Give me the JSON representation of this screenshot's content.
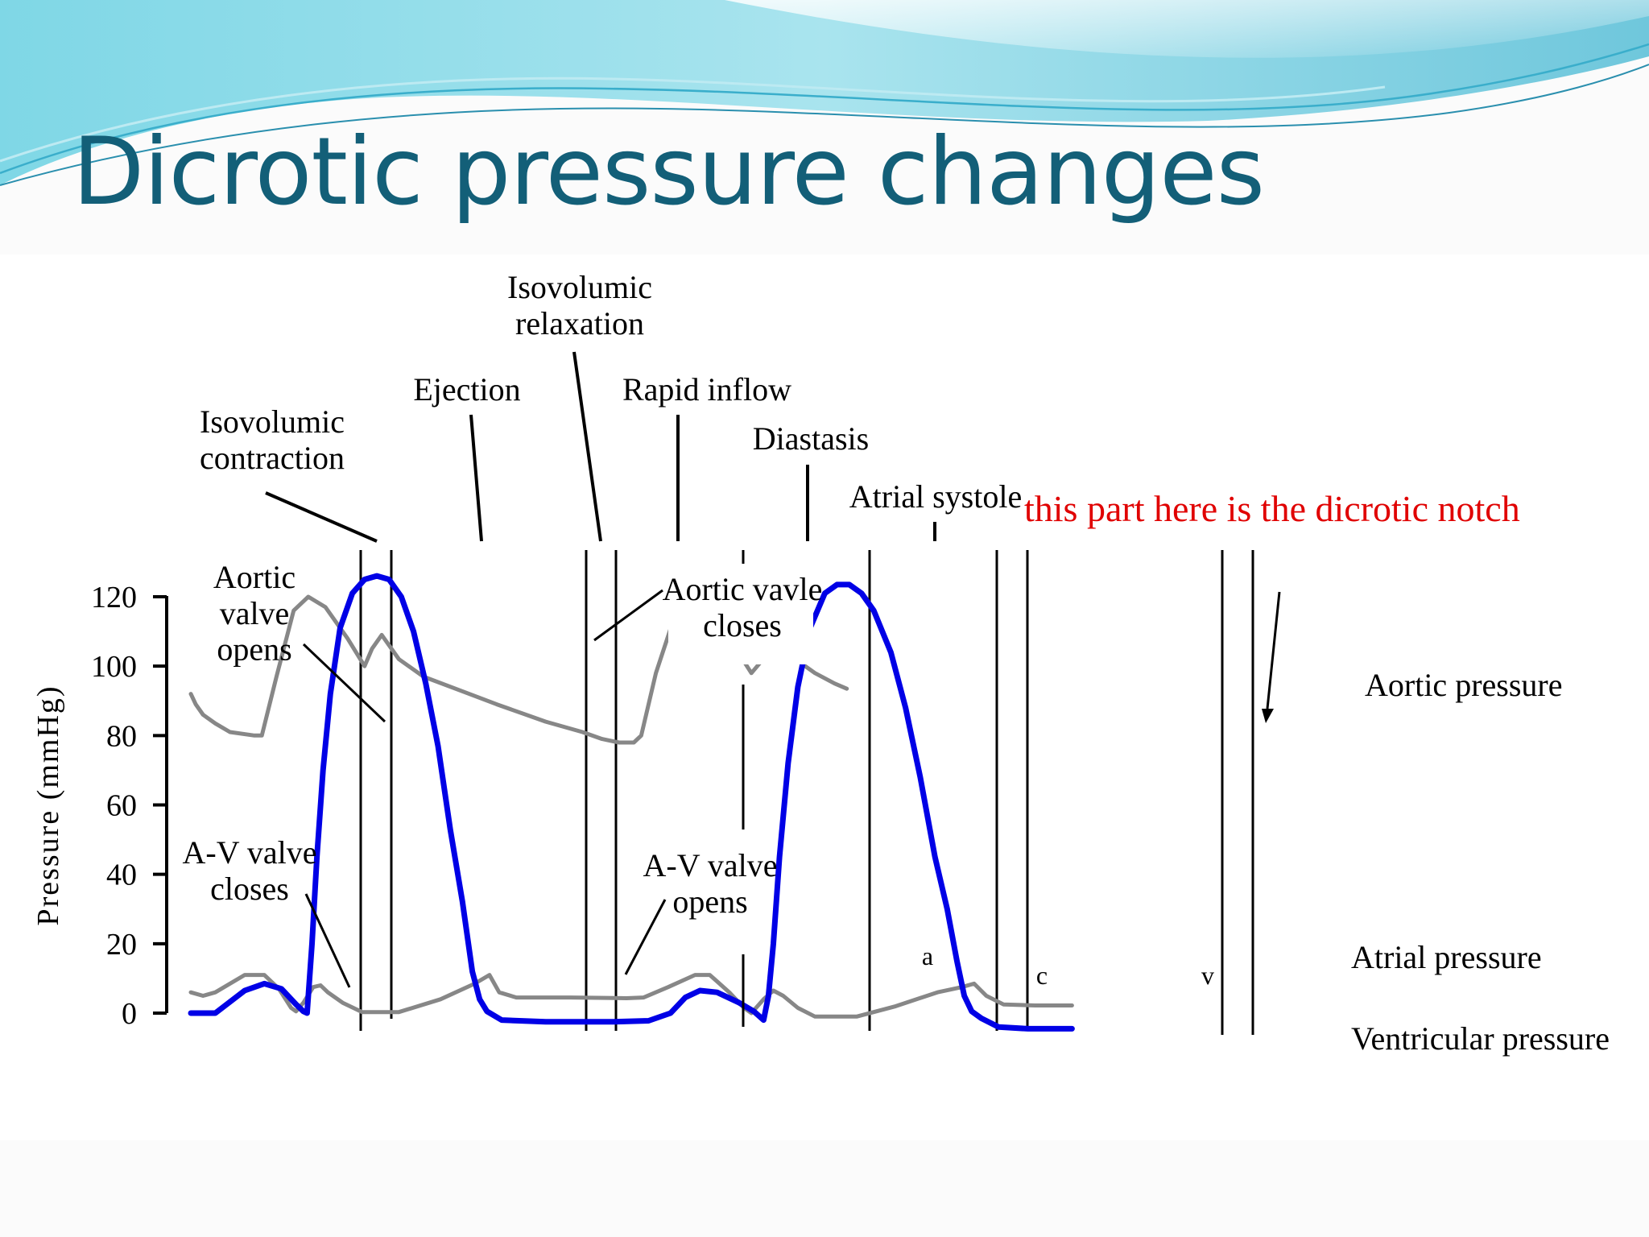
{
  "slide": {
    "title": "Dicrotic pressure changes",
    "colors": {
      "title": "#135f78",
      "accent_wave": "#5bc8d8",
      "background": "#fbfbfb"
    }
  },
  "chart_data": {
    "type": "line",
    "ylabel": "Pressure (mmHg)",
    "xlabel": "",
    "ylim": [
      0,
      120
    ],
    "yticks": [
      0,
      20,
      40,
      60,
      80,
      100,
      120
    ],
    "grid": false,
    "phases": [
      "Isovolumic contraction",
      "Ejection",
      "Isovolumic relaxation",
      "Rapid inflow",
      "Diastasis",
      "Atrial systole"
    ],
    "annotations": {
      "aortic_valve_opens": "Aortic valve opens",
      "aortic_valve_closes": "Aortic vavle closes",
      "av_valve_closes": "A-V valve closes",
      "av_valve_opens": "A-V valve opens",
      "dicrotic_note": "this part here is the dicrotic notch",
      "wave_a": "a",
      "wave_c": "c",
      "wave_v": "v"
    },
    "series": [
      {
        "name": "Aortic pressure",
        "color": "#878787",
        "points": [
          [
            0,
            92
          ],
          [
            0.2,
            89
          ],
          [
            0.5,
            86
          ],
          [
            1.0,
            83.5
          ],
          [
            1.6,
            81
          ],
          [
            2.6,
            80
          ],
          [
            2.9,
            80
          ],
          [
            3.5,
            97
          ],
          [
            4.2,
            116
          ],
          [
            4.8,
            120
          ],
          [
            5.5,
            117
          ],
          [
            6.4,
            108
          ],
          [
            7.1,
            100
          ],
          [
            7.4,
            105
          ],
          [
            7.8,
            109
          ],
          [
            8.5,
            102
          ],
          [
            9.5,
            97
          ],
          [
            11,
            93
          ],
          [
            12.5,
            89
          ],
          [
            14.5,
            84
          ],
          [
            16,
            81
          ],
          [
            16.8,
            79
          ],
          [
            17.5,
            78
          ],
          [
            18.1,
            78
          ],
          [
            18.4,
            80
          ],
          [
            19.0,
            98
          ],
          [
            19.7,
            113
          ],
          [
            20.3,
            118
          ],
          [
            21.0,
            117
          ],
          [
            22.0,
            108
          ],
          [
            22.9,
            98
          ],
          [
            23.5,
            103
          ],
          [
            23.8,
            107
          ],
          [
            24.5,
            103
          ],
          [
            25.5,
            98
          ],
          [
            26.3,
            95
          ],
          [
            26.8,
            93.5
          ]
        ]
      },
      {
        "name": "Atrial pressure",
        "color": "#878787",
        "points": [
          [
            0,
            6
          ],
          [
            0.5,
            5
          ],
          [
            1.0,
            6
          ],
          [
            2.2,
            11
          ],
          [
            3.0,
            11
          ],
          [
            3.6,
            7
          ],
          [
            4.1,
            1.5
          ],
          [
            4.3,
            0.5
          ],
          [
            4.6,
            3
          ],
          [
            5.0,
            7.5
          ],
          [
            5.3,
            8
          ],
          [
            5.6,
            6
          ],
          [
            6.2,
            3
          ],
          [
            7.0,
            0.3
          ],
          [
            8.5,
            0.3
          ],
          [
            10.2,
            4
          ],
          [
            11.6,
            8.5
          ],
          [
            12.2,
            11
          ],
          [
            12.6,
            6
          ],
          [
            13.3,
            4.5
          ],
          [
            15.5,
            4.5
          ],
          [
            17.8,
            4.3
          ],
          [
            18.5,
            4.5
          ],
          [
            19.5,
            7.5
          ],
          [
            20.6,
            11
          ],
          [
            21.2,
            11
          ],
          [
            22.0,
            6
          ],
          [
            22.6,
            1.5
          ],
          [
            22.9,
            0
          ],
          [
            23.4,
            4
          ],
          [
            23.8,
            6.5
          ],
          [
            24.2,
            5
          ],
          [
            24.8,
            1.5
          ],
          [
            25.5,
            -1
          ],
          [
            27.2,
            -1
          ],
          [
            28.8,
            2
          ],
          [
            30.5,
            6
          ],
          [
            31.5,
            7.5
          ],
          [
            32.0,
            8.5
          ],
          [
            32.5,
            5
          ],
          [
            33.2,
            2.5
          ],
          [
            34.5,
            2.2
          ],
          [
            36.0,
            2.2
          ]
        ]
      },
      {
        "name": "Ventricular pressure",
        "color": "#0000e6",
        "points": [
          [
            0,
            0
          ],
          [
            1.0,
            0
          ],
          [
            2.2,
            6.5
          ],
          [
            3.0,
            8.5
          ],
          [
            3.7,
            7
          ],
          [
            4.3,
            2.5
          ],
          [
            4.6,
            0.5
          ],
          [
            4.75,
            0
          ],
          [
            4.95,
            20
          ],
          [
            5.15,
            45
          ],
          [
            5.4,
            70
          ],
          [
            5.7,
            92
          ],
          [
            6.1,
            111
          ],
          [
            6.6,
            121
          ],
          [
            7.1,
            125
          ],
          [
            7.6,
            126
          ],
          [
            8.1,
            125
          ],
          [
            8.6,
            120
          ],
          [
            9.1,
            110
          ],
          [
            9.6,
            95
          ],
          [
            10.1,
            77
          ],
          [
            10.6,
            53
          ],
          [
            11.1,
            32
          ],
          [
            11.5,
            12
          ],
          [
            11.8,
            4
          ],
          [
            12.1,
            0.5
          ],
          [
            12.7,
            -2
          ],
          [
            14.5,
            -2.5
          ],
          [
            17.2,
            -2.5
          ],
          [
            18.7,
            -2.2
          ],
          [
            19.6,
            0
          ],
          [
            20.2,
            4.5
          ],
          [
            20.8,
            6.5
          ],
          [
            21.5,
            6
          ],
          [
            22.4,
            3
          ],
          [
            23.0,
            0.5
          ],
          [
            23.4,
            -2
          ],
          [
            23.6,
            5
          ],
          [
            23.8,
            20
          ],
          [
            24.05,
            45
          ],
          [
            24.4,
            72
          ],
          [
            24.8,
            94
          ],
          [
            25.3,
            111
          ],
          [
            25.9,
            121
          ],
          [
            26.4,
            123.5
          ],
          [
            26.9,
            123.5
          ],
          [
            27.4,
            121
          ],
          [
            27.9,
            116
          ],
          [
            28.6,
            104
          ],
          [
            29.2,
            88
          ],
          [
            29.8,
            68
          ],
          [
            30.4,
            45
          ],
          [
            30.9,
            30
          ],
          [
            31.3,
            15
          ],
          [
            31.6,
            5
          ],
          [
            31.9,
            0.5
          ],
          [
            32.3,
            -1.5
          ],
          [
            33.0,
            -4
          ],
          [
            34.2,
            -4.5
          ],
          [
            36.0,
            -4.5
          ]
        ]
      }
    ]
  }
}
